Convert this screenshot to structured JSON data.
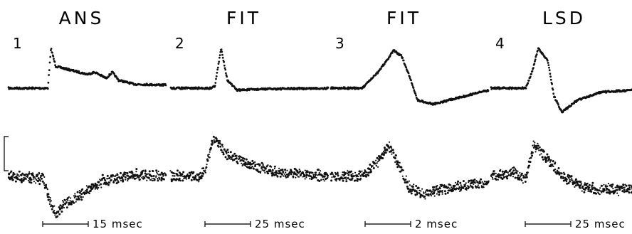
{
  "chart_data": {
    "type": "line",
    "panels": [
      {
        "number": "1",
        "title": "ANS",
        "time_scale": "15 msec",
        "top_trace": [
          [
            0,
            0
          ],
          [
            0.25,
            0
          ],
          [
            0.27,
            -1
          ],
          [
            0.3,
            -0.55
          ],
          [
            0.4,
            -0.45
          ],
          [
            0.5,
            -0.35
          ],
          [
            0.55,
            -0.4
          ],
          [
            0.62,
            -0.25
          ],
          [
            0.66,
            -0.4
          ],
          [
            0.7,
            -0.2
          ],
          [
            0.8,
            -0.1
          ],
          [
            1,
            -0.08
          ]
        ],
        "bottom_trace": [
          [
            0,
            0
          ],
          [
            0.22,
            0.05
          ],
          [
            0.26,
            0.6
          ],
          [
            0.3,
            1
          ],
          [
            0.36,
            0.7
          ],
          [
            0.45,
            0.5
          ],
          [
            0.6,
            0.1
          ],
          [
            0.8,
            -0.05
          ],
          [
            1,
            0
          ]
        ]
      },
      {
        "number": "2",
        "title": "FIT",
        "time_scale": "25 msec",
        "top_trace": [
          [
            0,
            0
          ],
          [
            0.25,
            0
          ],
          [
            0.28,
            -0.05
          ],
          [
            0.32,
            -1
          ],
          [
            0.36,
            -0.2
          ],
          [
            0.42,
            0.05
          ],
          [
            0.6,
            0.02
          ],
          [
            1,
            0
          ]
        ],
        "bottom_trace": [
          [
            0,
            0
          ],
          [
            0.18,
            0
          ],
          [
            0.22,
            -0.2
          ],
          [
            0.27,
            -1
          ],
          [
            0.35,
            -0.6
          ],
          [
            0.5,
            -0.3
          ],
          [
            0.7,
            -0.1
          ],
          [
            1,
            0
          ]
        ]
      },
      {
        "number": "3",
        "title": "FIT",
        "time_scale": "2 msec",
        "top_trace": [
          [
            0,
            0
          ],
          [
            0.2,
            0
          ],
          [
            0.3,
            -0.4
          ],
          [
            0.4,
            -0.95
          ],
          [
            0.45,
            -0.8
          ],
          [
            0.5,
            -0.3
          ],
          [
            0.55,
            0.3
          ],
          [
            0.65,
            0.4
          ],
          [
            0.8,
            0.25
          ],
          [
            1,
            0.05
          ]
        ],
        "bottom_trace": [
          [
            0,
            0
          ],
          [
            0.2,
            0
          ],
          [
            0.3,
            -0.4
          ],
          [
            0.36,
            -0.8
          ],
          [
            0.42,
            -0.4
          ],
          [
            0.5,
            0.3
          ],
          [
            0.6,
            0.45
          ],
          [
            0.75,
            0.3
          ],
          [
            1,
            0.15
          ]
        ]
      },
      {
        "number": "4",
        "title": "LSD",
        "time_scale": "25 msec",
        "top_trace": [
          [
            0,
            0
          ],
          [
            0.22,
            0
          ],
          [
            0.26,
            -0.4
          ],
          [
            0.3,
            -1
          ],
          [
            0.36,
            -0.7
          ],
          [
            0.4,
            0.2
          ],
          [
            0.45,
            0.6
          ],
          [
            0.55,
            0.3
          ],
          [
            0.7,
            0.1
          ],
          [
            1,
            0.02
          ]
        ],
        "bottom_trace": [
          [
            0,
            0
          ],
          [
            0.15,
            -0.1
          ],
          [
            0.22,
            0.1
          ],
          [
            0.27,
            -0.8
          ],
          [
            0.35,
            -0.5
          ],
          [
            0.45,
            0
          ],
          [
            0.6,
            0.3
          ],
          [
            0.8,
            0.35
          ],
          [
            1,
            0.25
          ]
        ]
      }
    ]
  }
}
